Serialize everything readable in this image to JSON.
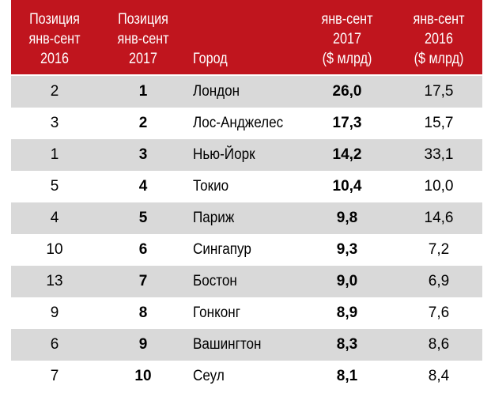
{
  "header": {
    "col_rank_2016": "Позиция\nянв-сент\n2016",
    "col_rank_2017": "Позиция\nянв-сент\n2017",
    "col_city": "Город",
    "col_value_2017": "янв-сент\n2017\n($ млрд)",
    "col_value_2016": "янв-сент\n2016\n($ млрд)"
  },
  "colors": {
    "header_bg": "#c0151e",
    "header_text": "#ffffff",
    "shaded_row": "#d9d9d9"
  },
  "rows": [
    {
      "rank_2016": "2",
      "rank_2017": "1",
      "city": "Лондон",
      "value_2017": "26,0",
      "value_2016": "17,5"
    },
    {
      "rank_2016": "3",
      "rank_2017": "2",
      "city": "Лос-Анджелес",
      "value_2017": "17,3",
      "value_2016": "15,7"
    },
    {
      "rank_2016": "1",
      "rank_2017": "3",
      "city": "Нью-Йорк",
      "value_2017": "14,2",
      "value_2016": "33,1"
    },
    {
      "rank_2016": "5",
      "rank_2017": "4",
      "city": "Токио",
      "value_2017": "10,4",
      "value_2016": "10,0"
    },
    {
      "rank_2016": "4",
      "rank_2017": "5",
      "city": "Париж",
      "value_2017": "9,8",
      "value_2016": "14,6"
    },
    {
      "rank_2016": "10",
      "rank_2017": "6",
      "city": "Сингапур",
      "value_2017": "9,3",
      "value_2016": "7,2"
    },
    {
      "rank_2016": "13",
      "rank_2017": "7",
      "city": "Бостон",
      "value_2017": "9,0",
      "value_2016": "6,9"
    },
    {
      "rank_2016": "9",
      "rank_2017": "8",
      "city": "Гонконг",
      "value_2017": "8,9",
      "value_2016": "7,6"
    },
    {
      "rank_2016": "6",
      "rank_2017": "9",
      "city": "Вашингтон",
      "value_2017": "8,3",
      "value_2016": "8,6"
    },
    {
      "rank_2016": "7",
      "rank_2017": "10",
      "city": "Сеул",
      "value_2017": "8,1",
      "value_2016": "8,4"
    }
  ]
}
